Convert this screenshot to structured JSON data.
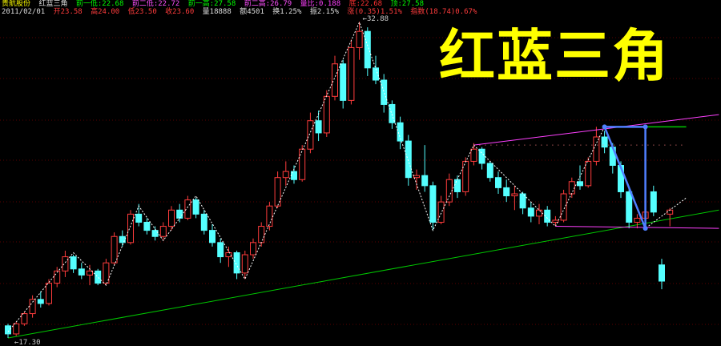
{
  "header": {
    "stock_name": "贵航股份",
    "indicator": "红蓝三角",
    "prev_low1": "前一低:22.68",
    "prev_low2": "前二低:22.72",
    "prev_high1": "前一高:27.58",
    "prev_high2": "前二高:26.79",
    "ratio": "量比:0.188",
    "bottom": "底:22.68",
    "top": "顶:27.58",
    "date": "2011/02/01",
    "open": "开23.58",
    "high": "高24.00",
    "low": "低23.50",
    "close": "收23.60",
    "volume": "量18888",
    "amount": "额4501",
    "turnover": "换1.25%",
    "amplitude": "振2.15%",
    "change": "涨(0.35)1.51%",
    "index": "指数(18.74)0.67%"
  },
  "title": "红蓝三角",
  "colors": {
    "up": "#ff3c3c",
    "down": "#54ffff",
    "trend": "#00c800",
    "channel": "#ff40ff",
    "triangle": "#4f7fff",
    "title": "#ffff00"
  },
  "chart_data": {
    "type": "candlestick",
    "price_labels": {
      "max": "32.88",
      "min": "17.30"
    },
    "max_price": 32.88,
    "min_price": 17.3,
    "candles": [
      [
        17.9,
        18.0,
        17.3,
        17.5
      ],
      [
        17.5,
        18.1,
        17.4,
        18.0
      ],
      [
        18.0,
        18.6,
        17.9,
        18.5
      ],
      [
        18.5,
        19.4,
        18.3,
        19.2
      ],
      [
        19.2,
        19.6,
        18.8,
        19.0
      ],
      [
        19.0,
        20.2,
        18.9,
        20.0
      ],
      [
        20.0,
        20.8,
        19.8,
        20.6
      ],
      [
        20.6,
        21.6,
        20.3,
        21.3
      ],
      [
        21.3,
        21.4,
        20.5,
        20.7
      ],
      [
        20.7,
        21.0,
        20.2,
        20.4
      ],
      [
        20.4,
        20.9,
        19.9,
        20.6
      ],
      [
        20.6,
        20.7,
        19.9,
        20.0
      ],
      [
        20.0,
        21.2,
        19.9,
        21.0
      ],
      [
        21.0,
        22.5,
        20.9,
        22.3
      ],
      [
        22.3,
        22.6,
        21.8,
        22.0
      ],
      [
        22.0,
        23.6,
        21.9,
        23.4
      ],
      [
        23.4,
        23.9,
        22.8,
        23.0
      ],
      [
        23.0,
        23.2,
        22.4,
        22.6
      ],
      [
        22.6,
        22.8,
        22.1,
        22.3
      ],
      [
        22.3,
        23.0,
        22.1,
        22.8
      ],
      [
        22.8,
        23.8,
        22.6,
        23.6
      ],
      [
        23.6,
        23.9,
        23.0,
        23.2
      ],
      [
        23.2,
        24.3,
        23.1,
        24.1
      ],
      [
        24.1,
        24.2,
        23.2,
        23.4
      ],
      [
        23.4,
        23.6,
        22.4,
        22.6
      ],
      [
        22.6,
        22.9,
        21.8,
        22.0
      ],
      [
        22.0,
        22.2,
        21.0,
        21.3
      ],
      [
        21.3,
        21.8,
        20.8,
        21.5
      ],
      [
        21.5,
        21.6,
        20.2,
        20.5
      ],
      [
        20.5,
        21.6,
        20.2,
        21.4
      ],
      [
        21.4,
        22.2,
        21.2,
        22.0
      ],
      [
        22.0,
        23.0,
        21.8,
        22.8
      ],
      [
        22.8,
        24.0,
        22.6,
        23.8
      ],
      [
        23.8,
        25.5,
        23.7,
        25.2
      ],
      [
        25.2,
        26.0,
        24.8,
        25.5
      ],
      [
        25.5,
        25.8,
        24.9,
        25.1
      ],
      [
        25.1,
        26.8,
        25.0,
        26.6
      ],
      [
        26.6,
        28.4,
        26.4,
        28.0
      ],
      [
        28.0,
        28.5,
        27.0,
        27.4
      ],
      [
        27.4,
        29.5,
        27.2,
        29.2
      ],
      [
        29.2,
        31.2,
        29.0,
        30.8
      ],
      [
        30.8,
        31.0,
        28.6,
        29.0
      ],
      [
        29.0,
        32.0,
        28.8,
        31.6
      ],
      [
        31.6,
        32.88,
        31.0,
        32.4
      ],
      [
        32.4,
        32.6,
        30.2,
        30.6
      ],
      [
        30.6,
        31.2,
        29.8,
        30.0
      ],
      [
        30.0,
        30.3,
        28.4,
        28.8
      ],
      [
        28.8,
        29.0,
        27.6,
        27.9
      ],
      [
        27.9,
        28.2,
        26.6,
        27.0
      ],
      [
        27.0,
        27.3,
        24.8,
        25.2
      ],
      [
        25.2,
        25.6,
        24.6,
        25.3
      ],
      [
        25.3,
        26.8,
        24.5,
        24.8
      ],
      [
        24.8,
        25.0,
        22.6,
        23.0
      ],
      [
        23.0,
        24.3,
        22.9,
        24.0
      ],
      [
        24.0,
        25.4,
        23.8,
        25.1
      ],
      [
        25.1,
        25.3,
        24.2,
        24.5
      ],
      [
        24.5,
        26.2,
        24.3,
        26.0
      ],
      [
        26.0,
        26.9,
        25.8,
        26.6
      ],
      [
        26.6,
        26.7,
        25.6,
        25.9
      ],
      [
        25.9,
        26.0,
        25.0,
        25.2
      ],
      [
        25.2,
        25.5,
        24.4,
        24.7
      ],
      [
        24.7,
        25.1,
        24.0,
        24.3
      ],
      [
        24.3,
        24.8,
        23.6,
        24.4
      ],
      [
        24.4,
        24.5,
        23.4,
        23.7
      ],
      [
        23.7,
        24.0,
        23.0,
        23.3
      ],
      [
        23.3,
        23.9,
        22.9,
        23.6
      ],
      [
        23.6,
        23.8,
        22.8,
        23.0
      ],
      [
        23.0,
        23.3,
        22.8,
        23.1
      ],
      [
        23.1,
        24.6,
        23.0,
        24.4
      ],
      [
        24.4,
        25.2,
        24.2,
        25.0
      ],
      [
        25.0,
        25.8,
        24.6,
        24.8
      ],
      [
        24.8,
        26.2,
        24.7,
        26.0
      ],
      [
        26.0,
        27.7,
        25.8,
        27.2
      ],
      [
        27.2,
        27.5,
        26.4,
        26.7
      ],
      [
        26.7,
        26.9,
        25.4,
        25.8
      ],
      [
        25.8,
        26.0,
        24.2,
        24.5
      ],
      [
        24.5,
        24.7,
        22.7,
        23.0
      ],
      [
        23.0,
        23.4,
        22.7,
        23.2
      ],
      [
        23.2,
        24.0,
        22.9,
        23.5
      ],
      [
        24.5,
        24.8,
        23.3,
        23.5
      ],
      [
        20.9,
        21.2,
        19.7,
        20.1
      ],
      [
        23.4,
        23.7,
        22.8,
        23.6
      ]
    ],
    "zigzag": [
      [
        0,
        17.6
      ],
      [
        8,
        21.5
      ],
      [
        12,
        19.9
      ],
      [
        16,
        23.8
      ],
      [
        19,
        22.1
      ],
      [
        23,
        24.3
      ],
      [
        29,
        20.2
      ],
      [
        43,
        32.85
      ],
      [
        52,
        22.6
      ],
      [
        57,
        26.8
      ],
      [
        67,
        22.8
      ],
      [
        73,
        27.7
      ],
      [
        78,
        22.7
      ],
      [
        83,
        24.2
      ]
    ],
    "trendline": [
      [
        0,
        17.3
      ],
      [
        87,
        23.6
      ]
    ],
    "channel_upper": [
      [
        57,
        26.8
      ],
      [
        87,
        28.3
      ]
    ],
    "channel_lower": [
      [
        67,
        22.8
      ],
      [
        87,
        22.7
      ]
    ],
    "resistance_dotted": [
      [
        57,
        26.8
      ],
      [
        83,
        26.8
      ]
    ],
    "triangle": [
      [
        73,
        27.7
      ],
      [
        78,
        27.7
      ],
      [
        78,
        22.7
      ]
    ],
    "triangle_top_green": [
      [
        78,
        27.7
      ],
      [
        83,
        27.7
      ]
    ]
  }
}
